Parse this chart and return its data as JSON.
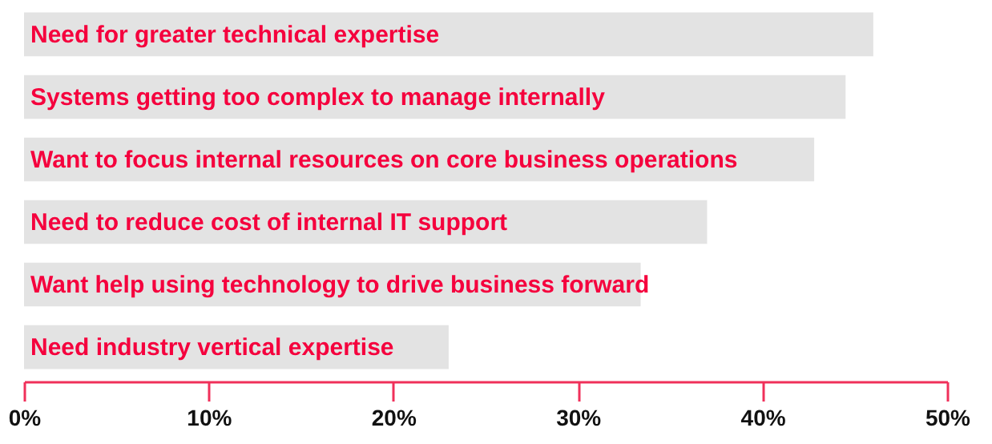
{
  "chart_data": {
    "type": "bar",
    "orientation": "horizontal",
    "categories": [
      "Need for greater technical expertise",
      "Systems getting too complex to manage internally",
      "Want to focus internal resources on core business operations",
      "Need to reduce cost of internal IT support",
      "Want help using technology to drive business forward",
      "Need industry vertical expertise"
    ],
    "values": [
      46,
      44.5,
      42.8,
      37,
      33.4,
      23
    ],
    "color": "#e3e3e3",
    "xlim": [
      0,
      50
    ],
    "xticks": [
      {
        "value": 0,
        "label": "0%"
      },
      {
        "value": 10,
        "label": "10%"
      },
      {
        "value": 20,
        "label": "20%"
      },
      {
        "value": 30,
        "label": "30%"
      },
      {
        "value": 40,
        "label": "40%"
      },
      {
        "value": 50,
        "label": "50%"
      }
    ],
    "grid": false
  }
}
